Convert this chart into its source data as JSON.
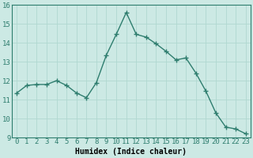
{
  "x": [
    0,
    1,
    2,
    3,
    4,
    5,
    6,
    7,
    8,
    9,
    10,
    11,
    12,
    13,
    14,
    15,
    16,
    17,
    18,
    19,
    20,
    21,
    22,
    23
  ],
  "y": [
    11.35,
    11.75,
    11.8,
    11.8,
    12.0,
    11.75,
    11.35,
    11.1,
    11.9,
    13.35,
    14.45,
    15.6,
    14.45,
    14.3,
    13.95,
    13.55,
    13.1,
    13.2,
    12.4,
    11.45,
    10.3,
    9.55,
    9.45,
    9.2
  ],
  "line_color": "#2e7d6e",
  "marker": "P",
  "marker_size": 2.5,
  "line_width": 1.0,
  "background_color": "#cce9e4",
  "grid_color": "#b0d8d0",
  "xlabel": "Humidex (Indice chaleur)",
  "xlabel_fontsize": 7,
  "xlim": [
    -0.5,
    23.5
  ],
  "ylim": [
    9,
    16
  ],
  "yticks": [
    9,
    10,
    11,
    12,
    13,
    14,
    15,
    16
  ],
  "xticks": [
    0,
    1,
    2,
    3,
    4,
    5,
    6,
    7,
    8,
    9,
    10,
    11,
    12,
    13,
    14,
    15,
    16,
    17,
    18,
    19,
    20,
    21,
    22,
    23
  ],
  "tick_fontsize": 6.5
}
